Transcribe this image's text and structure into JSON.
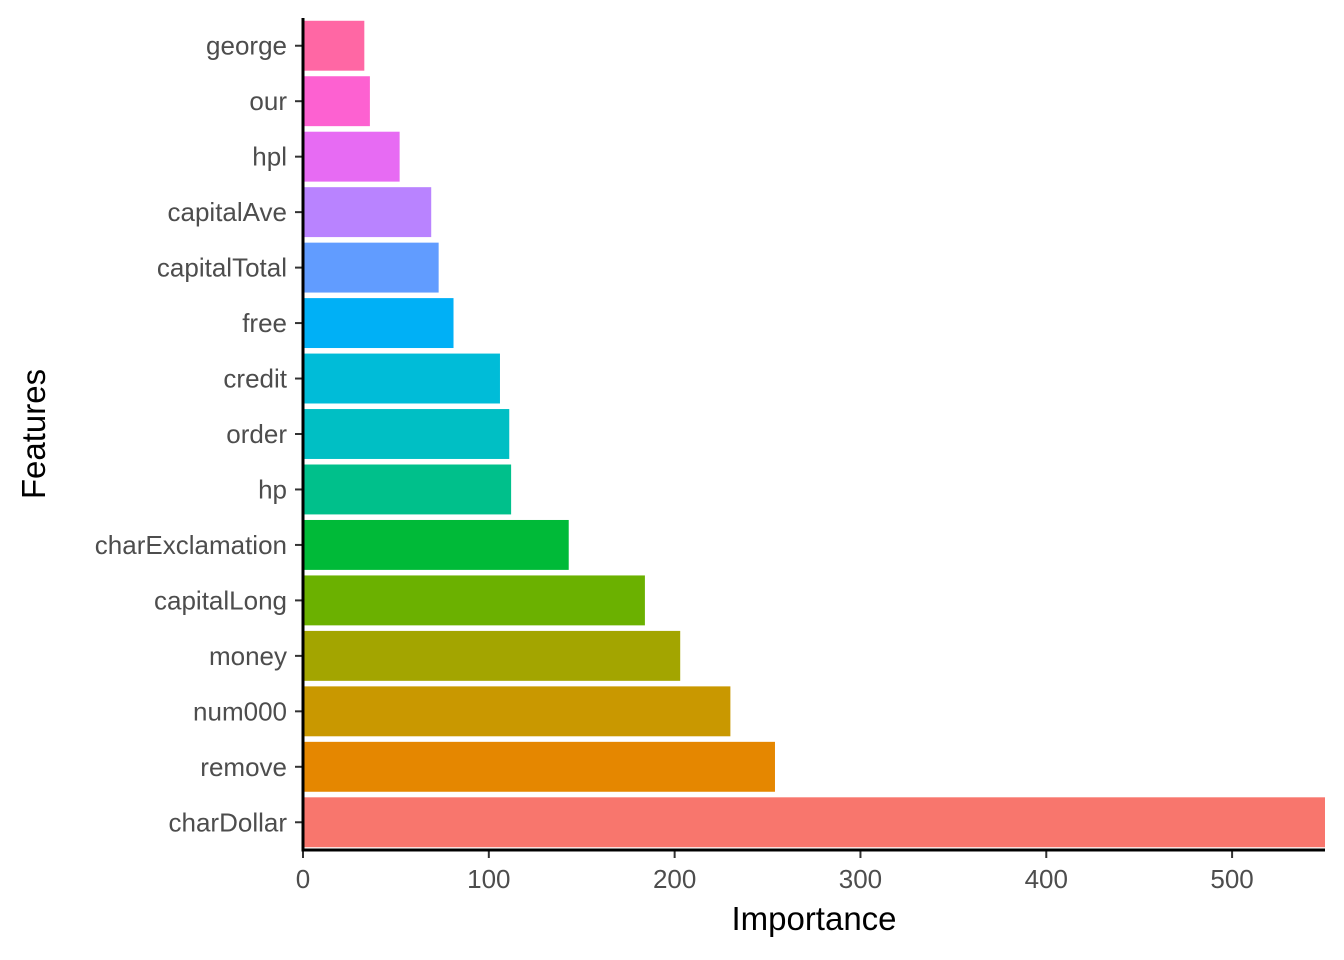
{
  "chart_data": {
    "type": "bar",
    "orientation": "horizontal",
    "xlabel": "Importance",
    "ylabel": "Features",
    "xlim": [
      0,
      550
    ],
    "x_ticks": [
      0,
      100,
      200,
      300,
      400,
      500
    ],
    "grid": false,
    "legend": "none",
    "categories": [
      "charDollar",
      "remove",
      "num000",
      "money",
      "capitalLong",
      "charExclamation",
      "hp",
      "order",
      "credit",
      "free",
      "capitalTotal",
      "capitalAve",
      "hpl",
      "our",
      "george"
    ],
    "values": [
      550,
      254,
      230,
      203,
      184,
      143,
      112,
      111,
      106,
      81,
      73,
      69,
      52,
      36,
      33
    ],
    "colors": [
      "#F8766D",
      "#E58700",
      "#C99800",
      "#A3A500",
      "#6BB100",
      "#00BA38",
      "#00C08B",
      "#00BFC4",
      "#00BCD8",
      "#00B0F6",
      "#619CFF",
      "#B983FF",
      "#E76BF3",
      "#FD61D1",
      "#FF67A4"
    ]
  }
}
